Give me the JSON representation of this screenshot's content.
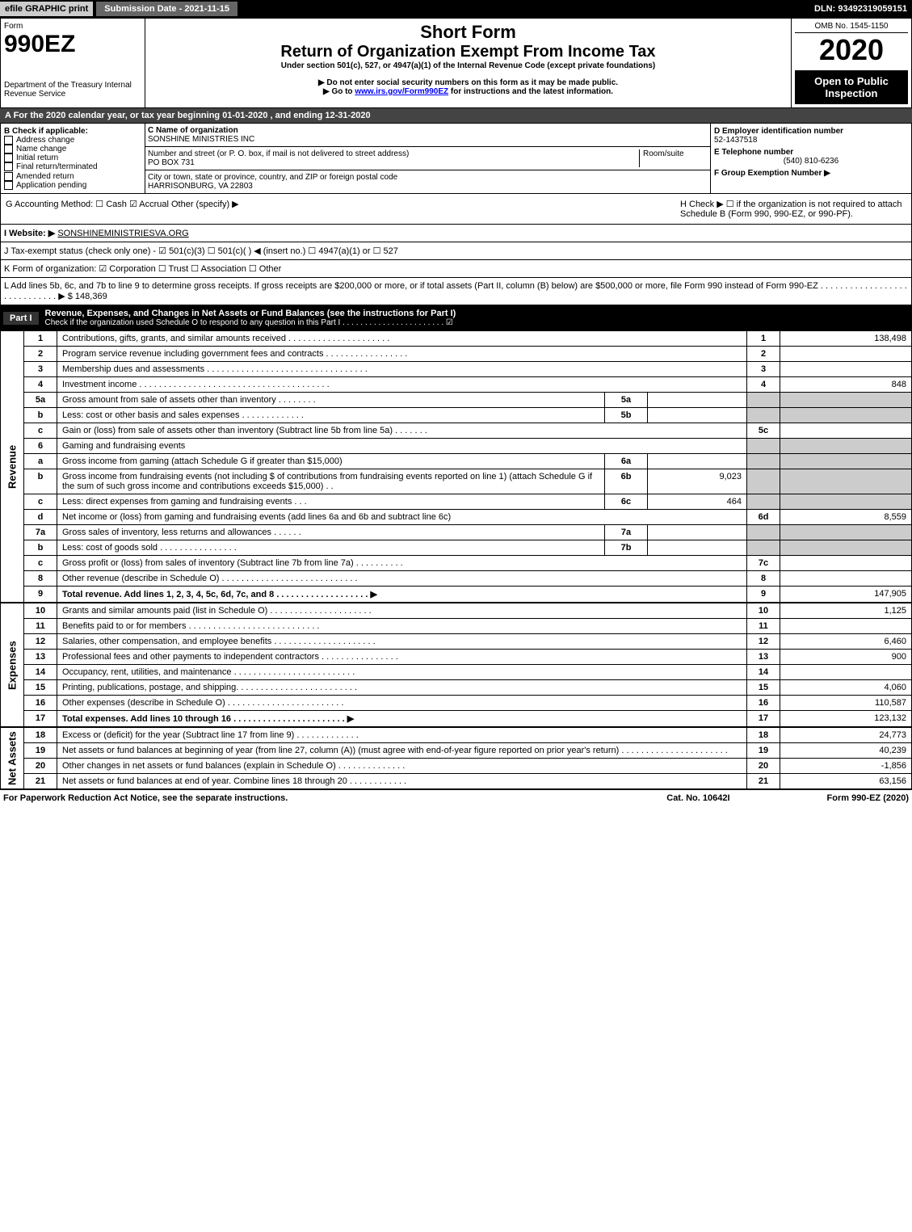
{
  "top": {
    "efile": "efile GRAPHIC print",
    "submission": "Submission Date - 2021-11-15",
    "dln": "DLN: 93492319059151"
  },
  "header": {
    "form_label": "Form",
    "form_number": "990EZ",
    "dept": "Department of the Treasury\nInternal Revenue Service",
    "short_form": "Short Form",
    "return_title": "Return of Organization Exempt From Income Tax",
    "under": "Under section 501(c), 527, or 4947(a)(1) of the Internal Revenue Code (except private foundations)",
    "note1": "▶ Do not enter social security numbers on this form as it may be made public.",
    "note2_prefix": "▶ Go to ",
    "note2_link": "www.irs.gov/Form990EZ",
    "note2_suffix": " for instructions and the latest information.",
    "omb": "OMB No. 1545-1150",
    "year": "2020",
    "open": "Open to Public Inspection"
  },
  "line_a": "A For the 2020 calendar year, or tax year beginning 01-01-2020 , and ending 12-31-2020",
  "box_b": {
    "title": "B Check if applicable:",
    "items": [
      "Address change",
      "Name change",
      "Initial return",
      "Final return/terminated",
      "Amended return",
      "Application pending"
    ]
  },
  "box_c": {
    "name_label": "C Name of organization",
    "name": "SONSHINE MINISTRIES INC",
    "street_label": "Number and street (or P. O. box, if mail is not delivered to street address)",
    "room_label": "Room/suite",
    "street": "PO BOX 731",
    "city_label": "City or town, state or province, country, and ZIP or foreign postal code",
    "city": "HARRISONBURG, VA  22803"
  },
  "box_d": {
    "ein_label": "D Employer identification number",
    "ein": "52-1437518",
    "phone_label": "E Telephone number",
    "phone": "(540) 810-6236",
    "group_label": "F Group Exemption Number ▶"
  },
  "row_g": "G Accounting Method:  ☐ Cash  ☑ Accrual  Other (specify) ▶",
  "row_h": "H Check ▶ ☐ if the organization is not required to attach Schedule B (Form 990, 990-EZ, or 990-PF).",
  "website_label": "I Website: ▶",
  "website": "SONSHINEMINISTRIESVA.ORG",
  "tax_status": "J Tax-exempt status (check only one) - ☑ 501(c)(3) ☐ 501(c)(  ) ◀ (insert no.) ☐ 4947(a)(1) or ☐ 527",
  "k_row": "K Form of organization:  ☑ Corporation  ☐ Trust  ☐ Association  ☐ Other",
  "l_row": "L Add lines 5b, 6c, and 7b to line 9 to determine gross receipts. If gross receipts are $200,000 or more, or if total assets (Part II, column (B) below) are $500,000 or more, file Form 990 instead of Form 990-EZ . . . . . . . . . . . . . . . . . . . . . . . . . . . . . ▶ $ 148,369",
  "part1": {
    "label": "Part I",
    "title": "Revenue, Expenses, and Changes in Net Assets or Fund Balances (see the instructions for Part I)",
    "check": "Check if the organization used Schedule O to respond to any question in this Part I . . . . . . . . . . . . . . . . . . . . . . . ☑"
  },
  "sections": {
    "revenue": "Revenue",
    "expenses": "Expenses",
    "netassets": "Net Assets"
  },
  "lines": [
    {
      "n": "1",
      "label": "Contributions, gifts, grants, and similar amounts received . . . . . . . . . . . . . . . . . . . . .",
      "r": "1",
      "amt": "138,498"
    },
    {
      "n": "2",
      "label": "Program service revenue including government fees and contracts . . . . . . . . . . . . . . . . .",
      "r": "2",
      "amt": ""
    },
    {
      "n": "3",
      "label": "Membership dues and assessments . . . . . . . . . . . . . . . . . . . . . . . . . . . . . . . . .",
      "r": "3",
      "amt": ""
    },
    {
      "n": "4",
      "label": "Investment income . . . . . . . . . . . . . . . . . . . . . . . . . . . . . . . . . . . . . . .",
      "r": "4",
      "amt": "848"
    },
    {
      "n": "5a",
      "label": "Gross amount from sale of assets other than inventory . . . . . . . .",
      "sub": "5a",
      "subval": "",
      "shade": true
    },
    {
      "n": "b",
      "label": "Less: cost or other basis and sales expenses . . . . . . . . . . . . .",
      "sub": "5b",
      "subval": "",
      "shade": true
    },
    {
      "n": "c",
      "label": "Gain or (loss) from sale of assets other than inventory (Subtract line 5b from line 5a) . . . . . . .",
      "r": "5c",
      "amt": ""
    },
    {
      "n": "6",
      "label": "Gaming and fundraising events",
      "shade": true,
      "nosub": true
    },
    {
      "n": "a",
      "label": "Gross income from gaming (attach Schedule G if greater than $15,000)",
      "sub": "6a",
      "subval": "",
      "shade": true
    },
    {
      "n": "b",
      "label": "Gross income from fundraising events (not including $                    of contributions from fundraising events reported on line 1) (attach Schedule G if the sum of such gross income and contributions exceeds $15,000)  . .",
      "sub": "6b",
      "subval": "9,023",
      "shade": true
    },
    {
      "n": "c",
      "label": "Less: direct expenses from gaming and fundraising events   . . .",
      "sub": "6c",
      "subval": "464",
      "shade": true
    },
    {
      "n": "d",
      "label": "Net income or (loss) from gaming and fundraising events (add lines 6a and 6b and subtract line 6c)",
      "r": "6d",
      "amt": "8,559"
    },
    {
      "n": "7a",
      "label": "Gross sales of inventory, less returns and allowances . . . . . .",
      "sub": "7a",
      "subval": "",
      "shade": true
    },
    {
      "n": "b",
      "label": "Less: cost of goods sold      . . . . . . . . . . . . . . . .",
      "sub": "7b",
      "subval": "",
      "shade": true
    },
    {
      "n": "c",
      "label": "Gross profit or (loss) from sales of inventory (Subtract line 7b from line 7a) . . . . . . . . . .",
      "r": "7c",
      "amt": ""
    },
    {
      "n": "8",
      "label": "Other revenue (describe in Schedule O) . . . . . . . . . . . . . . . . . . . . . . . . . . . .",
      "r": "8",
      "amt": ""
    },
    {
      "n": "9",
      "label": "Total revenue. Add lines 1, 2, 3, 4, 5c, 6d, 7c, and 8 . . . . . . . . . . . . . . . . . . . ▶",
      "r": "9",
      "amt": "147,905",
      "bold": true
    }
  ],
  "exp_lines": [
    {
      "n": "10",
      "label": "Grants and similar amounts paid (list in Schedule O) . . . . . . . . . . . . . . . . . . . . .",
      "r": "10",
      "amt": "1,125"
    },
    {
      "n": "11",
      "label": "Benefits paid to or for members      . . . . . . . . . . . . . . . . . . . . . . . . . . .",
      "r": "11",
      "amt": ""
    },
    {
      "n": "12",
      "label": "Salaries, other compensation, and employee benefits . . . . . . . . . . . . . . . . . . . . .",
      "r": "12",
      "amt": "6,460"
    },
    {
      "n": "13",
      "label": "Professional fees and other payments to independent contractors . . . . . . . . . . . . . . . .",
      "r": "13",
      "amt": "900"
    },
    {
      "n": "14",
      "label": "Occupancy, rent, utilities, and maintenance . . . . . . . . . . . . . . . . . . . . . . . . .",
      "r": "14",
      "amt": ""
    },
    {
      "n": "15",
      "label": "Printing, publications, postage, and shipping. . . . . . . . . . . . . . . . . . . . . . . . .",
      "r": "15",
      "amt": "4,060"
    },
    {
      "n": "16",
      "label": "Other expenses (describe in Schedule O)    . . . . . . . . . . . . . . . . . . . . . . . .",
      "r": "16",
      "amt": "110,587"
    },
    {
      "n": "17",
      "label": "Total expenses. Add lines 10 through 16    . . . . . . . . . . . . . . . . . . . . . . . ▶",
      "r": "17",
      "amt": "123,132",
      "bold": true
    }
  ],
  "na_lines": [
    {
      "n": "18",
      "label": "Excess or (deficit) for the year (Subtract line 17 from line 9)       . . . . . . . . . . . . .",
      "r": "18",
      "amt": "24,773"
    },
    {
      "n": "19",
      "label": "Net assets or fund balances at beginning of year (from line 27, column (A)) (must agree with end-of-year figure reported on prior year's return) . . . . . . . . . . . . . . . . . . . . . .",
      "r": "19",
      "amt": "40,239"
    },
    {
      "n": "20",
      "label": "Other changes in net assets or fund balances (explain in Schedule O) . . . . . . . . . . . . . .",
      "r": "20",
      "amt": "-1,856"
    },
    {
      "n": "21",
      "label": "Net assets or fund balances at end of year. Combine lines 18 through 20 . . . . . . . . . . . .",
      "r": "21",
      "amt": "63,156"
    }
  ],
  "footer": {
    "left": "For Paperwork Reduction Act Notice, see the separate instructions.",
    "mid": "Cat. No. 10642I",
    "right": "Form 990-EZ (2020)"
  }
}
